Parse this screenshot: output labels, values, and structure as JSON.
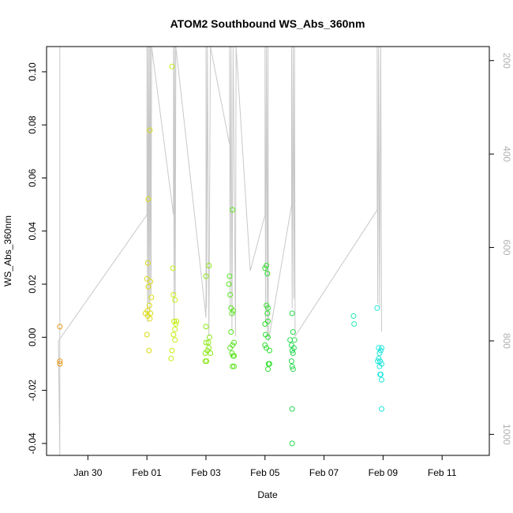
{
  "chart_data": {
    "type": "scatter",
    "title": "ATOM2 Southbound WS_Abs_360nm",
    "xlabel": "Date",
    "ylabel": "WS_Abs_360nm",
    "xlim": [
      -3.4,
      11.6
    ],
    "ylim": [
      -0.0445,
      0.1095
    ],
    "y2lim": [
      1045,
      170
    ],
    "x_ticks": [
      {
        "value": -2,
        "label": "Jan 30"
      },
      {
        "value": 0,
        "label": "Feb 01"
      },
      {
        "value": 2,
        "label": "Feb 03"
      },
      {
        "value": 4,
        "label": "Feb 05"
      },
      {
        "value": 6,
        "label": "Feb 07"
      },
      {
        "value": 8,
        "label": "Feb 09"
      },
      {
        "value": 10,
        "label": "Feb 11"
      }
    ],
    "y_ticks": [
      {
        "value": -0.04,
        "label": "-0.04"
      },
      {
        "value": -0.02,
        "label": "-0.02"
      },
      {
        "value": 0.0,
        "label": "0.00"
      },
      {
        "value": 0.02,
        "label": "0.02"
      },
      {
        "value": 0.04,
        "label": "0.04"
      },
      {
        "value": 0.06,
        "label": "0.06"
      },
      {
        "value": 0.08,
        "label": "0.08"
      },
      {
        "value": 0.1,
        "label": "0.10"
      }
    ],
    "y2_ticks": [
      {
        "value": 200,
        "label": "200"
      },
      {
        "value": 400,
        "label": "400"
      },
      {
        "value": 600,
        "label": "600"
      },
      {
        "value": 800,
        "label": "800"
      },
      {
        "value": 1000,
        "label": "1000"
      }
    ],
    "grid": false,
    "line_color": "#c8c8c8",
    "series": [
      {
        "color": "#e69a1a",
        "points": [
          [
            -2.95,
            0.004
          ],
          [
            -2.95,
            -0.009
          ],
          [
            -2.95,
            -0.01
          ]
        ]
      },
      {
        "color": "#dcdc14",
        "points": [
          [
            -0.05,
            0.009
          ],
          [
            0.0,
            0.022
          ],
          [
            0.03,
            0.028
          ],
          [
            0.05,
            0.052
          ],
          [
            0.1,
            0.078
          ],
          [
            0.08,
            0.012
          ],
          [
            0.12,
            0.009
          ],
          [
            0.03,
            0.008
          ],
          [
            0.1,
            0.007
          ],
          [
            0.0,
            0.001
          ],
          [
            0.07,
            -0.005
          ],
          [
            0.15,
            0.015
          ],
          [
            0.05,
            0.019
          ],
          [
            0.12,
            0.021
          ],
          [
            0.02,
            0.01
          ]
        ]
      },
      {
        "color": "#c4ee14",
        "points": [
          [
            0.85,
            0.102
          ],
          [
            0.88,
            0.026
          ],
          [
            0.9,
            0.016
          ],
          [
            0.95,
            0.014
          ],
          [
            0.92,
            0.006
          ],
          [
            0.98,
            0.005
          ],
          [
            0.95,
            0.003
          ],
          [
            0.9,
            0.001
          ],
          [
            0.95,
            -0.001
          ],
          [
            0.85,
            -0.005
          ],
          [
            0.82,
            -0.008
          ],
          [
            1.0,
            0.006
          ]
        ]
      },
      {
        "color": "#8ae814",
        "points": [
          [
            2.0,
            0.023
          ],
          [
            2.1,
            0.027
          ],
          [
            2.0,
            0.004
          ],
          [
            2.12,
            0.0
          ],
          [
            2.08,
            -0.002
          ],
          [
            2.0,
            -0.002
          ],
          [
            1.98,
            -0.006
          ],
          [
            2.05,
            -0.005
          ],
          [
            2.1,
            -0.004
          ],
          [
            2.15,
            -0.006
          ],
          [
            1.98,
            -0.009
          ],
          [
            2.02,
            -0.009
          ]
        ]
      },
      {
        "color": "#5ae41e",
        "points": [
          [
            2.8,
            0.023
          ],
          [
            2.78,
            0.02
          ],
          [
            2.82,
            0.016
          ],
          [
            2.9,
            0.048
          ],
          [
            2.85,
            0.011
          ],
          [
            2.92,
            0.01
          ],
          [
            2.88,
            0.009
          ],
          [
            2.85,
            0.002
          ],
          [
            2.9,
            -0.003
          ],
          [
            2.82,
            -0.004
          ],
          [
            2.95,
            -0.002
          ],
          [
            2.88,
            -0.006
          ],
          [
            2.92,
            -0.007
          ],
          [
            2.95,
            -0.007
          ],
          [
            2.9,
            -0.011
          ],
          [
            2.95,
            -0.011
          ]
        ]
      },
      {
        "color": "#32de32",
        "points": [
          [
            4.0,
            0.026
          ],
          [
            4.05,
            0.027
          ],
          [
            4.08,
            0.024
          ],
          [
            4.05,
            0.012
          ],
          [
            4.1,
            0.011
          ],
          [
            4.08,
            0.009
          ],
          [
            4.1,
            0.006
          ],
          [
            4.0,
            0.005
          ],
          [
            4.02,
            0.001
          ],
          [
            4.1,
            0.0
          ],
          [
            4.0,
            -0.003
          ],
          [
            4.05,
            -0.004
          ],
          [
            4.15,
            -0.005
          ],
          [
            4.12,
            -0.01
          ],
          [
            4.15,
            -0.01
          ],
          [
            4.1,
            -0.012
          ]
        ]
      },
      {
        "color": "#28d850",
        "points": [
          [
            4.92,
            0.009
          ],
          [
            4.95,
            0.002
          ],
          [
            4.85,
            -0.001
          ],
          [
            4.9,
            -0.003
          ],
          [
            5.0,
            -0.001
          ],
          [
            4.98,
            -0.004
          ],
          [
            4.92,
            -0.005
          ],
          [
            4.95,
            -0.006
          ],
          [
            4.9,
            -0.009
          ],
          [
            4.92,
            -0.011
          ],
          [
            4.95,
            -0.012
          ],
          [
            4.92,
            -0.027
          ],
          [
            4.92,
            -0.04
          ]
        ]
      },
      {
        "color": "#28e6b4",
        "points": [
          [
            7.0,
            0.008
          ],
          [
            7.02,
            0.005
          ]
        ]
      },
      {
        "color": "#1ee6dc",
        "points": [
          [
            7.8,
            0.011
          ],
          [
            7.85,
            -0.004
          ],
          [
            7.95,
            -0.004
          ],
          [
            7.88,
            -0.006
          ],
          [
            7.92,
            -0.005
          ],
          [
            7.85,
            -0.008
          ],
          [
            7.82,
            -0.009
          ],
          [
            7.9,
            -0.009
          ],
          [
            7.95,
            -0.01
          ],
          [
            7.88,
            -0.011
          ],
          [
            7.92,
            -0.014
          ],
          [
            7.9,
            -0.014
          ],
          [
            7.95,
            -0.016
          ],
          [
            7.95,
            -0.027
          ]
        ]
      }
    ],
    "pressure_trace": [
      [
        -2.95,
        170
      ],
      [
        -2.95,
        1045
      ],
      [
        -3.0,
        800
      ],
      [
        0.0,
        530
      ],
      [
        0.0,
        170
      ],
      [
        0.02,
        760
      ],
      [
        0.04,
        170
      ],
      [
        0.06,
        720
      ],
      [
        0.08,
        170
      ],
      [
        0.1,
        740
      ],
      [
        0.12,
        170
      ],
      [
        0.14,
        700
      ],
      [
        0.16,
        170
      ],
      [
        0.9,
        530
      ],
      [
        0.9,
        170
      ],
      [
        0.92,
        760
      ],
      [
        0.94,
        170
      ],
      [
        0.96,
        700
      ],
      [
        0.98,
        170
      ],
      [
        2.0,
        750
      ],
      [
        2.0,
        170
      ],
      [
        2.02,
        730
      ],
      [
        2.05,
        170
      ],
      [
        2.1,
        790
      ],
      [
        2.15,
        170
      ],
      [
        2.8,
        380
      ],
      [
        2.8,
        170
      ],
      [
        2.82,
        730
      ],
      [
        2.85,
        170
      ],
      [
        2.88,
        780
      ],
      [
        2.92,
        170
      ],
      [
        3.0,
        790
      ],
      [
        3.02,
        170
      ],
      [
        3.5,
        650
      ],
      [
        4.0,
        530
      ],
      [
        4.0,
        170
      ],
      [
        4.02,
        760
      ],
      [
        4.05,
        170
      ],
      [
        4.08,
        790
      ],
      [
        4.1,
        170
      ],
      [
        4.12,
        800
      ],
      [
        4.9,
        510
      ],
      [
        4.9,
        170
      ],
      [
        4.92,
        730
      ],
      [
        4.95,
        170
      ],
      [
        4.98,
        710
      ],
      [
        5.0,
        170
      ],
      [
        5.02,
        790
      ],
      [
        7.8,
        520
      ],
      [
        7.8,
        170
      ],
      [
        7.82,
        720
      ],
      [
        7.85,
        170
      ],
      [
        7.88,
        730
      ],
      [
        7.92,
        170
      ],
      [
        7.95,
        780
      ]
    ]
  }
}
